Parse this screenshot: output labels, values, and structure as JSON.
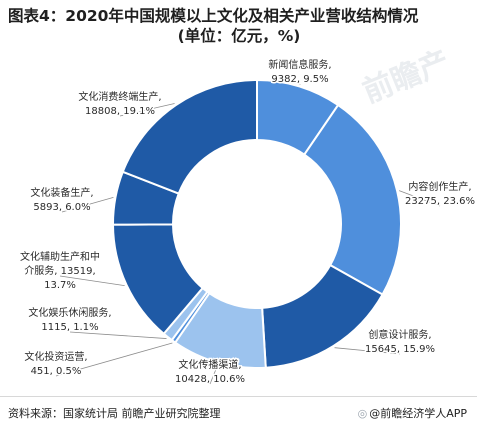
{
  "title_line1": "图表4：2020年中国规模以上文化及相关产业营收结构情况",
  "title_line2": "(单位：亿元，%)",
  "source": "资料来源：国家统计局 前瞻产业研究院整理",
  "brand": "@前瞻经济学人APP",
  "brand_icon": "qianzhan-logo-icon",
  "watermark_text": "前瞻产",
  "colors": {
    "dark_blue": "#1f5aa6",
    "mid_blue": "#4f8fdc",
    "light_blue": "#9cc3ee",
    "leader": "#8c8c8c"
  },
  "chart_data": {
    "type": "pie",
    "donut": true,
    "unit": "亿元",
    "series": [
      {
        "name": "新闻信息服务",
        "value": 9382,
        "pct": 9.5,
        "label_l1": "新闻信息服务,",
        "label_l2": "9382, 9.5%",
        "color": "#4f8fdc"
      },
      {
        "name": "内容创作生产",
        "value": 23275,
        "pct": 23.6,
        "label_l1": "内容创作生产,",
        "label_l2": "23275, 23.6%",
        "color": "#4f8fdc"
      },
      {
        "name": "创意设计服务",
        "value": 15645,
        "pct": 15.9,
        "label_l1": "创意设计服务,",
        "label_l2": "15645, 15.9%",
        "color": "#1f5aa6"
      },
      {
        "name": "文化传播渠道",
        "value": 10428,
        "pct": 10.6,
        "label_l1": "文化传播渠道,",
        "label_l2": "10428, 10.6%",
        "color": "#9cc3ee"
      },
      {
        "name": "文化投资运营",
        "value": 451,
        "pct": 0.5,
        "label_l1": "文化投资运营,",
        "label_l2": "451, 0.5%",
        "color": "#4f8fdc"
      },
      {
        "name": "文化娱乐休闲服务",
        "value": 1115,
        "pct": 1.1,
        "label_l1": "文化娱乐休闲服务,",
        "label_l2": "1115, 1.1%",
        "color": "#9cc3ee"
      },
      {
        "name": "文化辅助生产和中介服务",
        "value": 13519,
        "pct": 13.7,
        "label_l1": "文化辅助生产和中",
        "label_l2": "介服务, 13519,",
        "label_l3": "13.7%",
        "color": "#1f5aa6"
      },
      {
        "name": "文化装备生产",
        "value": 5893,
        "pct": 6.0,
        "label_l1": "文化装备生产,",
        "label_l2": "5893, 6.0%",
        "color": "#1f5aa6"
      },
      {
        "name": "文化消费终端生产",
        "value": 18808,
        "pct": 19.1,
        "label_l1": "文化消费终端生产,",
        "label_l2": "18808, 19.1%",
        "color": "#1f5aa6"
      }
    ]
  }
}
